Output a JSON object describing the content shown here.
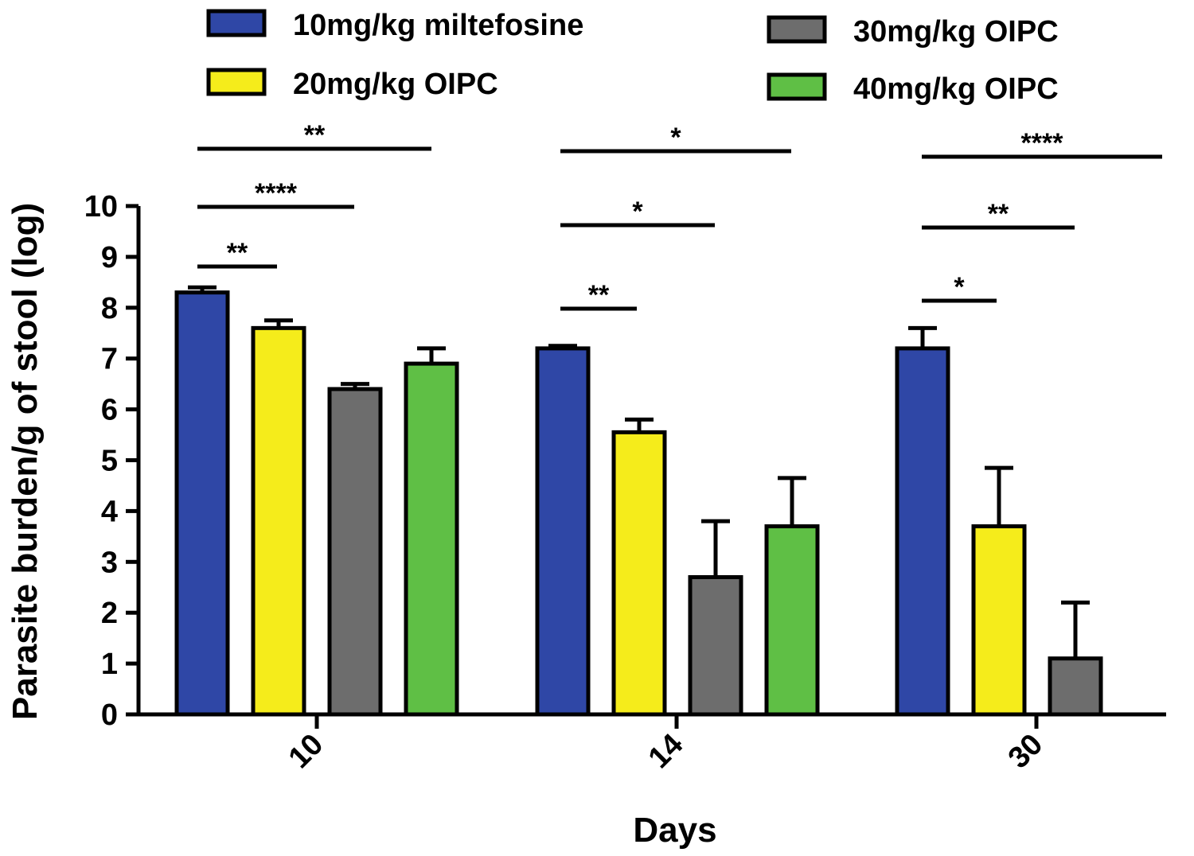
{
  "chart_data": {
    "type": "bar",
    "xlabel": "Days",
    "ylabel": "Parasite burden/g of stool (log)",
    "ylim": [
      0,
      10
    ],
    "yticks": [
      "0",
      "1",
      "2",
      "3",
      "4",
      "5",
      "6",
      "7",
      "8",
      "9",
      "10"
    ],
    "categories": [
      "10",
      "14",
      "30"
    ],
    "legend_position": "top",
    "series": [
      {
        "name": "10mg/kg miltefosine",
        "color": "#2f47a6",
        "values": [
          8.3,
          7.2,
          7.2
        ],
        "errors": [
          0.1,
          0.05,
          0.4
        ]
      },
      {
        "name": "20mg/kg OIPC",
        "color": "#f5ec1b",
        "values": [
          7.6,
          5.55,
          3.7
        ],
        "errors": [
          0.15,
          0.25,
          1.15
        ]
      },
      {
        "name": "30mg/kg OIPC",
        "color": "#6d6d6d",
        "values": [
          6.4,
          2.7,
          1.1
        ],
        "errors": [
          0.1,
          1.1,
          1.1
        ]
      },
      {
        "name": "40mg/kg OIPC",
        "color": "#5fbf45",
        "values": [
          6.9,
          3.7,
          null
        ],
        "errors": [
          0.3,
          0.95,
          null
        ]
      }
    ],
    "significance": [
      {
        "group": "10",
        "from_series": 0,
        "to_series": 1,
        "label": "**"
      },
      {
        "group": "10",
        "from_series": 0,
        "to_series": 2,
        "label": "****"
      },
      {
        "group": "10",
        "from_series": 0,
        "to_series": 3,
        "label": "**"
      },
      {
        "group": "14",
        "from_series": 0,
        "to_series": 1,
        "label": "**"
      },
      {
        "group": "14",
        "from_series": 0,
        "to_series": 2,
        "label": "*"
      },
      {
        "group": "14",
        "from_series": 0,
        "to_series": 3,
        "label": "*"
      },
      {
        "group": "30",
        "from_series": 0,
        "to_series": 1,
        "label": "*"
      },
      {
        "group": "30",
        "from_series": 0,
        "to_series": 2,
        "label": "**"
      },
      {
        "group": "30",
        "from_series": 0,
        "to_series": 3,
        "label": "****"
      }
    ]
  }
}
